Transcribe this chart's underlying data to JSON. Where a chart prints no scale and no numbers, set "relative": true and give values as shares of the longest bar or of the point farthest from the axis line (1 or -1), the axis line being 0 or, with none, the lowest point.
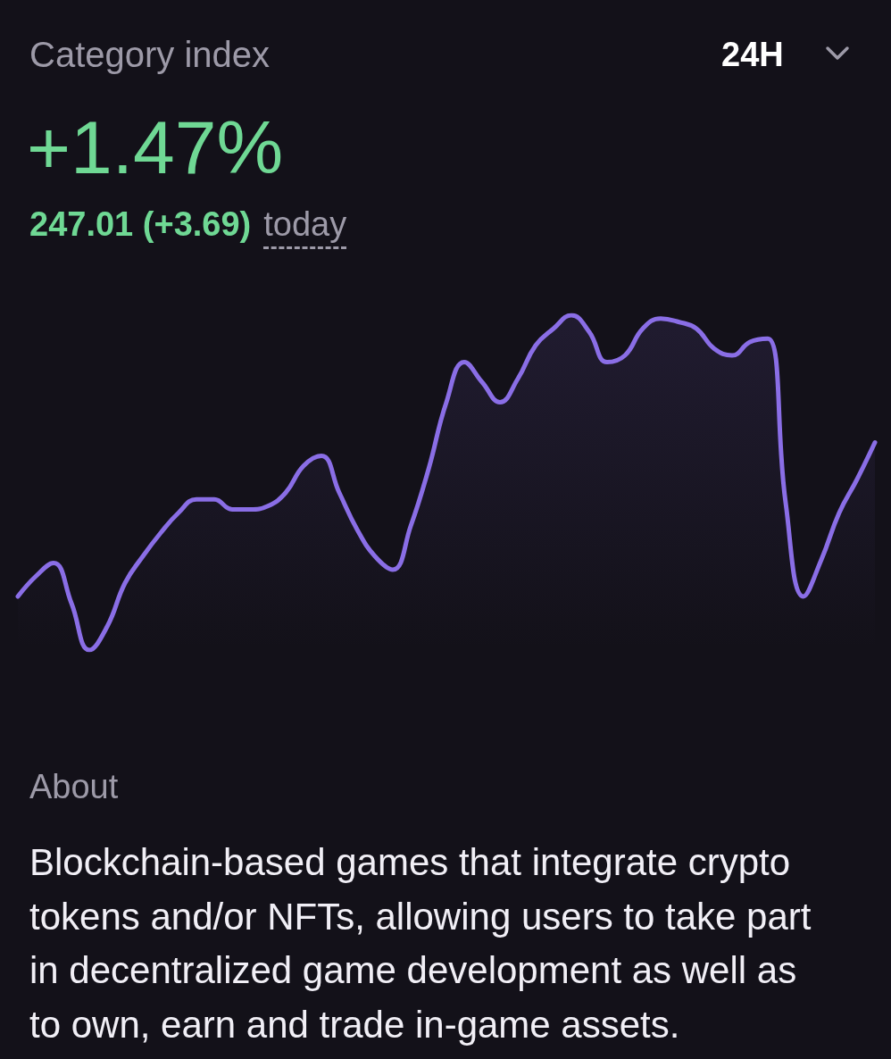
{
  "chart_data": {
    "type": "area",
    "title": "Category index",
    "subtitle": "+1.47%",
    "annotations": [
      "24H",
      "247.01 (+3.69)",
      "today",
      "About",
      "Blockchain-based games that integrate crypto tokens and/or NFTs, allowing users to take part in decentralized game development as well as to own, earn and trade in-game assets."
    ],
    "categories": [
      null,
      null,
      null,
      null,
      null,
      null,
      null,
      null,
      null,
      null,
      null,
      null,
      null,
      null,
      null,
      null,
      null,
      null,
      null,
      null,
      null,
      null,
      null,
      null,
      null,
      null,
      null,
      null,
      null,
      null,
      null,
      null,
      null,
      null,
      null,
      null,
      null,
      null,
      null,
      null,
      null,
      null,
      null,
      null,
      null,
      null,
      null,
      null,
      null
    ],
    "values": [
      0.16,
      0.22,
      0.26,
      0.14,
      0,
      0.07,
      0.2,
      0.28,
      0.35,
      0.41,
      0.45,
      0.45,
      0.42,
      0.42,
      0.43,
      0.47,
      0.55,
      0.58,
      0.47,
      0.36,
      0.28,
      0.24,
      0.37,
      0.54,
      0.74,
      0.86,
      0.8,
      0.74,
      0.81,
      0.91,
      0.96,
      1,
      0.95,
      0.86,
      0.88,
      0.96,
      0.99,
      0.98,
      0.96,
      0.9,
      0.88,
      0.92,
      0.93,
      0.44,
      0.16,
      0.27,
      0.41,
      0.51,
      0.62
    ],
    "color": "#8a6ee6",
    "relative": true
  }
}
